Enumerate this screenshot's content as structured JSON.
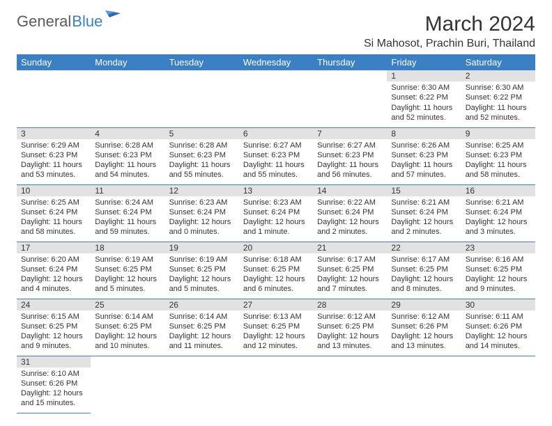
{
  "logo": {
    "general": "General",
    "blue": "Blue"
  },
  "title": "March 2024",
  "location": "Si Mahosot, Prachin Buri, Thailand",
  "colors": {
    "header_bg": "#3b7fc4",
    "daynum_bg": "#e2e2e2",
    "rule": "#3b7fc4"
  },
  "day_headers": [
    "Sunday",
    "Monday",
    "Tuesday",
    "Wednesday",
    "Thursday",
    "Friday",
    "Saturday"
  ],
  "weeks": [
    [
      null,
      null,
      null,
      null,
      null,
      {
        "n": "1",
        "sr": "Sunrise: 6:30 AM",
        "ss": "Sunset: 6:22 PM",
        "dl": "Daylight: 11 hours and 52 minutes."
      },
      {
        "n": "2",
        "sr": "Sunrise: 6:30 AM",
        "ss": "Sunset: 6:22 PM",
        "dl": "Daylight: 11 hours and 52 minutes."
      }
    ],
    [
      {
        "n": "3",
        "sr": "Sunrise: 6:29 AM",
        "ss": "Sunset: 6:23 PM",
        "dl": "Daylight: 11 hours and 53 minutes."
      },
      {
        "n": "4",
        "sr": "Sunrise: 6:28 AM",
        "ss": "Sunset: 6:23 PM",
        "dl": "Daylight: 11 hours and 54 minutes."
      },
      {
        "n": "5",
        "sr": "Sunrise: 6:28 AM",
        "ss": "Sunset: 6:23 PM",
        "dl": "Daylight: 11 hours and 55 minutes."
      },
      {
        "n": "6",
        "sr": "Sunrise: 6:27 AM",
        "ss": "Sunset: 6:23 PM",
        "dl": "Daylight: 11 hours and 55 minutes."
      },
      {
        "n": "7",
        "sr": "Sunrise: 6:27 AM",
        "ss": "Sunset: 6:23 PM",
        "dl": "Daylight: 11 hours and 56 minutes."
      },
      {
        "n": "8",
        "sr": "Sunrise: 6:26 AM",
        "ss": "Sunset: 6:23 PM",
        "dl": "Daylight: 11 hours and 57 minutes."
      },
      {
        "n": "9",
        "sr": "Sunrise: 6:25 AM",
        "ss": "Sunset: 6:23 PM",
        "dl": "Daylight: 11 hours and 58 minutes."
      }
    ],
    [
      {
        "n": "10",
        "sr": "Sunrise: 6:25 AM",
        "ss": "Sunset: 6:24 PM",
        "dl": "Daylight: 11 hours and 58 minutes."
      },
      {
        "n": "11",
        "sr": "Sunrise: 6:24 AM",
        "ss": "Sunset: 6:24 PM",
        "dl": "Daylight: 11 hours and 59 minutes."
      },
      {
        "n": "12",
        "sr": "Sunrise: 6:23 AM",
        "ss": "Sunset: 6:24 PM",
        "dl": "Daylight: 12 hours and 0 minutes."
      },
      {
        "n": "13",
        "sr": "Sunrise: 6:23 AM",
        "ss": "Sunset: 6:24 PM",
        "dl": "Daylight: 12 hours and 1 minute."
      },
      {
        "n": "14",
        "sr": "Sunrise: 6:22 AM",
        "ss": "Sunset: 6:24 PM",
        "dl": "Daylight: 12 hours and 2 minutes."
      },
      {
        "n": "15",
        "sr": "Sunrise: 6:21 AM",
        "ss": "Sunset: 6:24 PM",
        "dl": "Daylight: 12 hours and 2 minutes."
      },
      {
        "n": "16",
        "sr": "Sunrise: 6:21 AM",
        "ss": "Sunset: 6:24 PM",
        "dl": "Daylight: 12 hours and 3 minutes."
      }
    ],
    [
      {
        "n": "17",
        "sr": "Sunrise: 6:20 AM",
        "ss": "Sunset: 6:24 PM",
        "dl": "Daylight: 12 hours and 4 minutes."
      },
      {
        "n": "18",
        "sr": "Sunrise: 6:19 AM",
        "ss": "Sunset: 6:25 PM",
        "dl": "Daylight: 12 hours and 5 minutes."
      },
      {
        "n": "19",
        "sr": "Sunrise: 6:19 AM",
        "ss": "Sunset: 6:25 PM",
        "dl": "Daylight: 12 hours and 5 minutes."
      },
      {
        "n": "20",
        "sr": "Sunrise: 6:18 AM",
        "ss": "Sunset: 6:25 PM",
        "dl": "Daylight: 12 hours and 6 minutes."
      },
      {
        "n": "21",
        "sr": "Sunrise: 6:17 AM",
        "ss": "Sunset: 6:25 PM",
        "dl": "Daylight: 12 hours and 7 minutes."
      },
      {
        "n": "22",
        "sr": "Sunrise: 6:17 AM",
        "ss": "Sunset: 6:25 PM",
        "dl": "Daylight: 12 hours and 8 minutes."
      },
      {
        "n": "23",
        "sr": "Sunrise: 6:16 AM",
        "ss": "Sunset: 6:25 PM",
        "dl": "Daylight: 12 hours and 9 minutes."
      }
    ],
    [
      {
        "n": "24",
        "sr": "Sunrise: 6:15 AM",
        "ss": "Sunset: 6:25 PM",
        "dl": "Daylight: 12 hours and 9 minutes."
      },
      {
        "n": "25",
        "sr": "Sunrise: 6:14 AM",
        "ss": "Sunset: 6:25 PM",
        "dl": "Daylight: 12 hours and 10 minutes."
      },
      {
        "n": "26",
        "sr": "Sunrise: 6:14 AM",
        "ss": "Sunset: 6:25 PM",
        "dl": "Daylight: 12 hours and 11 minutes."
      },
      {
        "n": "27",
        "sr": "Sunrise: 6:13 AM",
        "ss": "Sunset: 6:25 PM",
        "dl": "Daylight: 12 hours and 12 minutes."
      },
      {
        "n": "28",
        "sr": "Sunrise: 6:12 AM",
        "ss": "Sunset: 6:25 PM",
        "dl": "Daylight: 12 hours and 13 minutes."
      },
      {
        "n": "29",
        "sr": "Sunrise: 6:12 AM",
        "ss": "Sunset: 6:26 PM",
        "dl": "Daylight: 12 hours and 13 minutes."
      },
      {
        "n": "30",
        "sr": "Sunrise: 6:11 AM",
        "ss": "Sunset: 6:26 PM",
        "dl": "Daylight: 12 hours and 14 minutes."
      }
    ],
    [
      {
        "n": "31",
        "sr": "Sunrise: 6:10 AM",
        "ss": "Sunset: 6:26 PM",
        "dl": "Daylight: 12 hours and 15 minutes."
      },
      null,
      null,
      null,
      null,
      null,
      null
    ]
  ]
}
